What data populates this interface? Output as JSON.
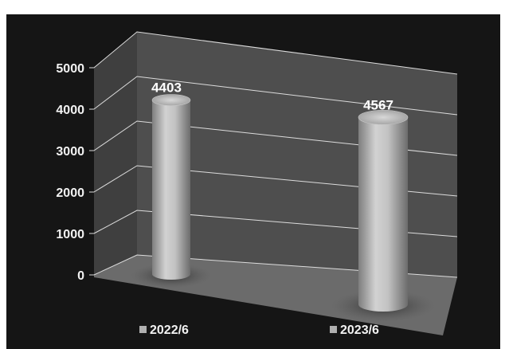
{
  "chart_data": {
    "type": "bar",
    "style": "3d-cylinder",
    "categories": [
      "2022/6",
      "2023/6"
    ],
    "values": [
      4403,
      4567
    ],
    "data_labels": [
      "4403",
      "4567"
    ],
    "ylim": [
      0,
      5000
    ],
    "yticks": [
      "0",
      "1000",
      "2000",
      "3000",
      "4000",
      "5000"
    ],
    "title": "",
    "xlabel": "",
    "ylabel": "",
    "grid": true,
    "legend_position": "bottom",
    "colors": {
      "background": "#151515",
      "wall": "#4d4d4d",
      "floor": "#6a6a6a",
      "bar": "#b8b8b8",
      "grid": "#dcdcdc",
      "text": "#f2f2f2"
    }
  }
}
